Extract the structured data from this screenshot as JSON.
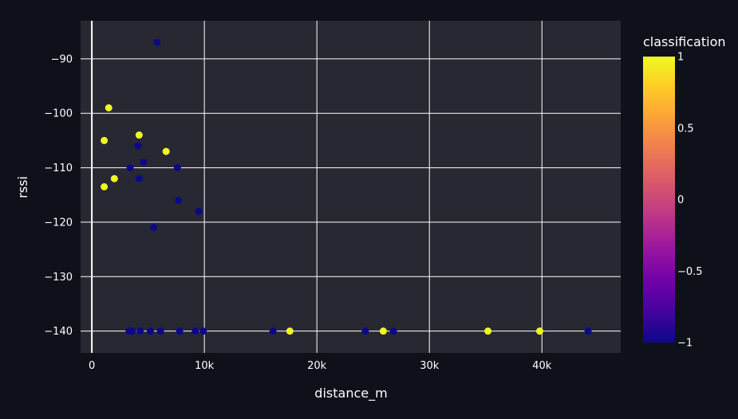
{
  "chart_data": {
    "type": "scatter",
    "title": "",
    "xlabel": "distance_m",
    "ylabel": "rssi",
    "xlim": [
      -1000,
      47000
    ],
    "ylim": [
      -144,
      -83
    ],
    "x_ticks": [
      0,
      10000,
      20000,
      30000,
      40000
    ],
    "x_tick_labels": [
      "0",
      "10k",
      "20k",
      "30k",
      "40k"
    ],
    "y_ticks": [
      -90,
      -100,
      -110,
      -120,
      -130,
      -140
    ],
    "y_tick_labels": [
      "−90",
      "−100",
      "−110",
      "−120",
      "−130",
      "−140"
    ],
    "grid": true,
    "colorbar": {
      "title": "classification",
      "min": -1,
      "max": 1,
      "ticks": [
        1,
        0.5,
        0,
        -0.5,
        -1
      ],
      "tick_labels": [
        "1",
        "0.5",
        "0",
        "−0.5",
        "−1"
      ],
      "colorscale": [
        "#0d0887",
        "#46039f",
        "#7201a8",
        "#9c179e",
        "#bd3786",
        "#d8576b",
        "#ed7953",
        "#fb9f3a",
        "#fdca26",
        "#f0f921"
      ]
    },
    "points": [
      {
        "x": 5800,
        "y": -87,
        "c": -1
      },
      {
        "x": 1500,
        "y": -99,
        "c": 1
      },
      {
        "x": 4200,
        "y": -104,
        "c": 1
      },
      {
        "x": 1100,
        "y": -105,
        "c": 1
      },
      {
        "x": 4100,
        "y": -106,
        "c": -1
      },
      {
        "x": 6600,
        "y": -107,
        "c": 1
      },
      {
        "x": 4600,
        "y": -109,
        "c": -1
      },
      {
        "x": 3400,
        "y": -110,
        "c": -1
      },
      {
        "x": 7600,
        "y": -110,
        "c": -1
      },
      {
        "x": 2000,
        "y": -112,
        "c": 1
      },
      {
        "x": 4200,
        "y": -112,
        "c": -1
      },
      {
        "x": 1100,
        "y": -113.5,
        "c": 1
      },
      {
        "x": 7700,
        "y": -116,
        "c": -1
      },
      {
        "x": 9500,
        "y": -118,
        "c": -1
      },
      {
        "x": 5500,
        "y": -121,
        "c": -1
      },
      {
        "x": 3300,
        "y": -140,
        "c": -1
      },
      {
        "x": 3600,
        "y": -140,
        "c": -1
      },
      {
        "x": 4300,
        "y": -140,
        "c": -1
      },
      {
        "x": 5200,
        "y": -140,
        "c": -1
      },
      {
        "x": 6100,
        "y": -140,
        "c": -1
      },
      {
        "x": 7800,
        "y": -140,
        "c": -1
      },
      {
        "x": 9200,
        "y": -140,
        "c": -1
      },
      {
        "x": 9900,
        "y": -140,
        "c": -1
      },
      {
        "x": 16100,
        "y": -140,
        "c": -1
      },
      {
        "x": 17600,
        "y": -140,
        "c": 1
      },
      {
        "x": 24300,
        "y": -140,
        "c": -1
      },
      {
        "x": 25900,
        "y": -140,
        "c": 1
      },
      {
        "x": 26800,
        "y": -140,
        "c": -1
      },
      {
        "x": 35200,
        "y": -140,
        "c": 1
      },
      {
        "x": 39800,
        "y": -140,
        "c": 1
      },
      {
        "x": 44100,
        "y": -140,
        "c": -1
      }
    ]
  },
  "colors": {
    "page_bg": "#0f111a",
    "plot_bg": "#282833",
    "grid": "#ffffff",
    "text": "#ffffff"
  }
}
